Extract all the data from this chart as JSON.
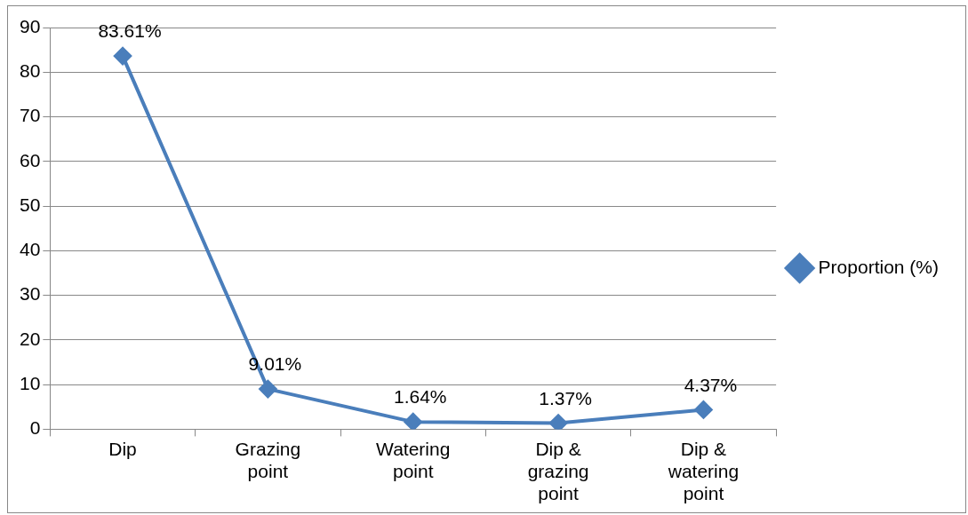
{
  "chart_data": {
    "type": "line",
    "categories": [
      "Dip",
      "Grazing point",
      "Watering point",
      "Dip & grazing point",
      "Dip & watering point"
    ],
    "series": [
      {
        "name": "Proportion (%)",
        "color": "#4a7ebb",
        "values": [
          83.61,
          9.01,
          1.64,
          1.37,
          4.37
        ],
        "value_labels": [
          "83.61%",
          "9.01%",
          "1.64%",
          "1.37%",
          "4.37%"
        ]
      }
    ],
    "ylim": [
      0,
      90
    ],
    "yticks": [
      0,
      10,
      20,
      30,
      40,
      50,
      60,
      70,
      80,
      90
    ],
    "grid": "y",
    "legend": "right",
    "marker": "diamond",
    "line_style": "solid"
  }
}
